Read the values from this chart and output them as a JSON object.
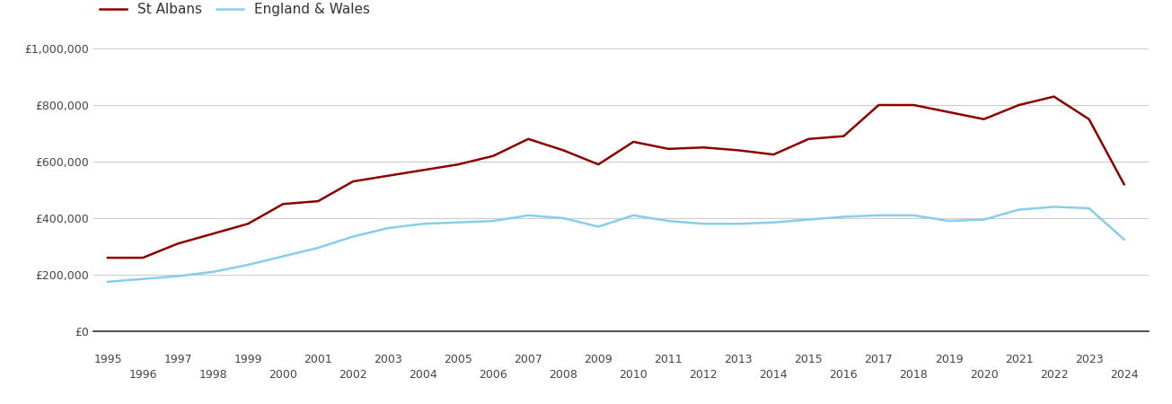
{
  "st_albans_years": [
    1995,
    1996,
    1997,
    1998,
    1999,
    2000,
    2001,
    2002,
    2003,
    2004,
    2005,
    2006,
    2007,
    2008,
    2009,
    2010,
    2011,
    2012,
    2013,
    2014,
    2015,
    2016,
    2017,
    2018,
    2019,
    2020,
    2021,
    2022,
    2023,
    2024
  ],
  "st_albans_values": [
    260000,
    260000,
    310000,
    345000,
    380000,
    450000,
    460000,
    530000,
    550000,
    570000,
    590000,
    620000,
    680000,
    640000,
    590000,
    670000,
    645000,
    650000,
    640000,
    625000,
    680000,
    690000,
    800000,
    800000,
    775000,
    750000,
    800000,
    830000,
    750000,
    520000
  ],
  "eng_wales_years": [
    1995,
    1996,
    1997,
    1998,
    1999,
    2000,
    2001,
    2002,
    2003,
    2004,
    2005,
    2006,
    2007,
    2008,
    2009,
    2010,
    2011,
    2012,
    2013,
    2014,
    2015,
    2016,
    2017,
    2018,
    2019,
    2020,
    2021,
    2022,
    2023,
    2024
  ],
  "eng_wales_values": [
    175000,
    185000,
    195000,
    210000,
    235000,
    265000,
    295000,
    335000,
    365000,
    380000,
    385000,
    390000,
    410000,
    400000,
    370000,
    410000,
    390000,
    380000,
    380000,
    385000,
    395000,
    405000,
    410000,
    410000,
    390000,
    395000,
    430000,
    440000,
    435000,
    325000
  ],
  "st_albans_color": "#8B0000",
  "eng_wales_color": "#87CEEB",
  "st_albans_label": "St Albans",
  "eng_wales_label": "England & Wales",
  "ylim": [
    0,
    1000000
  ],
  "yticks": [
    0,
    200000,
    400000,
    600000,
    800000,
    1000000
  ],
  "ytick_labels": [
    "£0",
    "£200,000",
    "£400,000",
    "£600,000",
    "£800,000",
    "£1,000,000"
  ],
  "xticks_odd": [
    1995,
    1997,
    1999,
    2001,
    2003,
    2005,
    2007,
    2009,
    2011,
    2013,
    2015,
    2017,
    2019,
    2021,
    2023
  ],
  "xticks_even": [
    1996,
    1998,
    2000,
    2002,
    2004,
    2006,
    2008,
    2010,
    2012,
    2014,
    2016,
    2018,
    2020,
    2022,
    2024
  ],
  "background_color": "#ffffff",
  "grid_color": "#cccccc",
  "line_width": 1.8,
  "tick_fontsize": 9,
  "legend_fontsize": 11
}
